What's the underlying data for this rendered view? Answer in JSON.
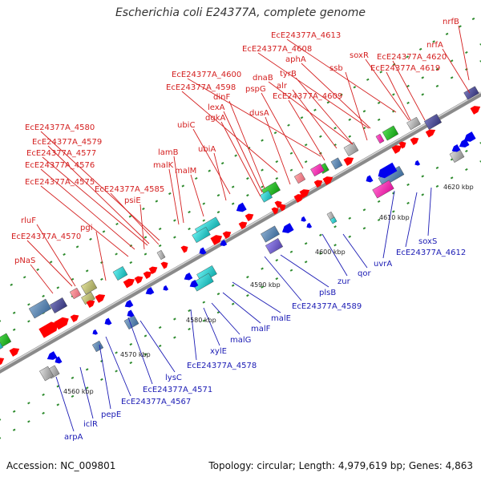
{
  "title": "Escherichia coli E24377A, complete genome",
  "footer": {
    "accession": "Accession: NC_009801",
    "stats": "Topology: circular; Length: 4,979,619 bp; Genes: 4,863"
  },
  "colors": {
    "forward_label": "#d42020",
    "reverse_label": "#1a1ab4",
    "backbone": "#8a8a8a",
    "forward_arrow": "#ff0000",
    "reverse_arrow": "#0000ee",
    "tick": "#1e8a1e"
  },
  "scale": {
    "ticks": [
      "4560 kbp",
      "4570 kbp",
      "4580 kbp",
      "4590 kbp",
      "4600 kbp",
      "4610 kbp",
      "4620 kbp"
    ]
  },
  "forward_labels": [
    "nrfB",
    "EcE24377A_4613",
    "nrfA",
    "soxR",
    "EcE24377A_4620",
    "EcE24377A_4608",
    "aphA",
    "EcE24377A_4619",
    "ssb",
    "dnaB",
    "tyrB",
    "alr",
    "EcE24377A_4600",
    "pspG",
    "EcE24377A_4609",
    "EcE24377A_4598",
    "dinF",
    "lexA",
    "dusA",
    "dgkA",
    "ubiC",
    "EcE24377A_4580",
    "EcE24377A_4579",
    "EcE24377A_4577",
    "ubiA",
    "lamB",
    "EcE24377A_4576",
    "malK",
    "malM",
    "EcE24377A_4575",
    "EcE24377A_4585",
    "psiE",
    "rluF",
    "pgi",
    "EcE24377A_4570",
    "pNaS"
  ],
  "reverse_labels": [
    "EcE24377A_4612",
    "soxS",
    "uvrA",
    "qor",
    "zur",
    "plsB",
    "EcE24377A_4589",
    "malE",
    "malF",
    "malG",
    "xylE",
    "EcE24377A_4578",
    "lysC",
    "EcE24377A_4571",
    "EcE24377A_4567",
    "pepE",
    "iclR",
    "arpA"
  ]
}
